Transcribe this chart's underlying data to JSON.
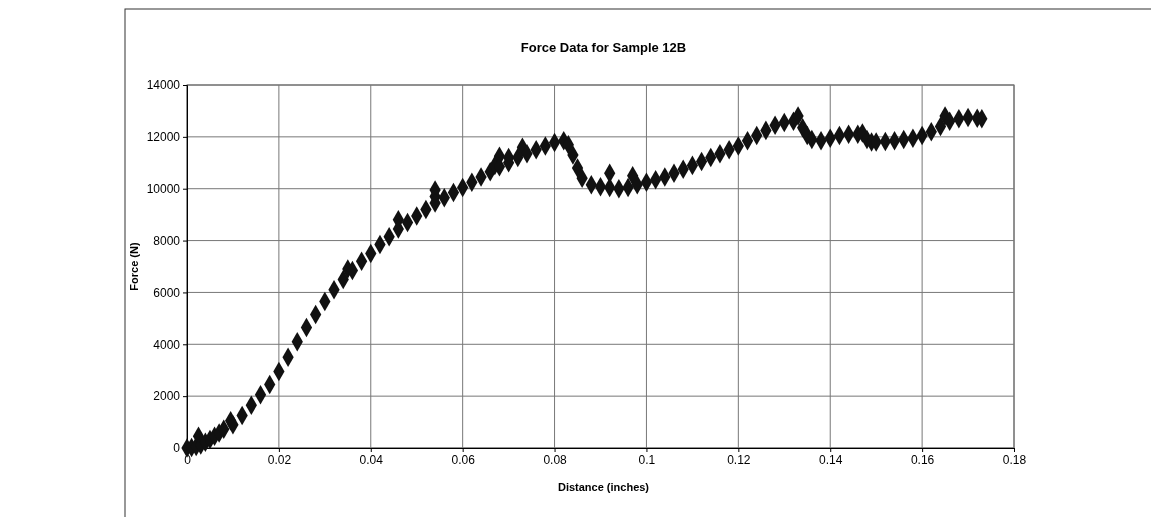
{
  "chart_data": {
    "type": "scatter",
    "title": "Force Data for Sample 12B",
    "xlabel": "Distance (inches)",
    "ylabel": "Force (N)",
    "xlim": [
      0,
      0.18
    ],
    "xticks": [
      0,
      0.02,
      0.04,
      0.06,
      0.08,
      0.1,
      0.12,
      0.14,
      0.16,
      0.18
    ],
    "ylim": [
      0,
      14000
    ],
    "yticks": [
      0,
      2000,
      4000,
      6000,
      8000,
      10000,
      12000,
      14000
    ],
    "grid": true,
    "marker": "diamond",
    "series": [
      {
        "color": "#111111",
        "x": [
          0,
          0.001,
          0.002,
          0.0025,
          0.003,
          0.004,
          0.005,
          0.006,
          0.007,
          0.008,
          0.0095,
          0.01,
          0.012,
          0.014,
          0.016,
          0.018,
          0.02,
          0.022,
          0.024,
          0.026,
          0.028,
          0.03,
          0.032,
          0.034,
          0.035,
          0.036,
          0.038,
          0.04,
          0.042,
          0.044,
          0.046,
          0.046,
          0.048,
          0.05,
          0.052,
          0.054,
          0.054,
          0.054,
          0.056,
          0.058,
          0.06,
          0.062,
          0.064,
          0.066,
          0.067,
          0.068,
          0.068,
          0.07,
          0.07,
          0.072,
          0.073,
          0.074,
          0.076,
          0.078,
          0.08,
          0.082,
          0.083,
          0.084,
          0.085,
          0.086,
          0.088,
          0.09,
          0.092,
          0.092,
          0.094,
          0.096,
          0.097,
          0.098,
          0.1,
          0.102,
          0.104,
          0.106,
          0.108,
          0.11,
          0.112,
          0.114,
          0.116,
          0.118,
          0.12,
          0.122,
          0.124,
          0.126,
          0.128,
          0.13,
          0.132,
          0.133,
          0.134,
          0.135,
          0.136,
          0.138,
          0.14,
          0.142,
          0.144,
          0.146,
          0.147,
          0.148,
          0.149,
          0.15,
          0.152,
          0.154,
          0.156,
          0.158,
          0.16,
          0.162,
          0.164,
          0.165,
          0.166,
          0.168,
          0.17,
          0.172,
          0.173
        ],
        "values": [
          0,
          20,
          60,
          450,
          120,
          220,
          330,
          450,
          580,
          720,
          1050,
          900,
          1250,
          1650,
          2050,
          2450,
          2950,
          3500,
          4100,
          4650,
          5150,
          5650,
          6100,
          6500,
          6900,
          6850,
          7200,
          7500,
          7850,
          8150,
          8800,
          8450,
          8700,
          8950,
          9200,
          9950,
          9700,
          9450,
          9650,
          9850,
          10050,
          10250,
          10450,
          10650,
          10900,
          11250,
          10850,
          11200,
          11000,
          11200,
          11600,
          11350,
          11500,
          11650,
          11780,
          11850,
          11700,
          11300,
          10800,
          10400,
          10150,
          10080,
          10600,
          10050,
          10000,
          10050,
          10500,
          10150,
          10250,
          10350,
          10450,
          10600,
          10750,
          10900,
          11050,
          11200,
          11350,
          11500,
          11650,
          11850,
          12050,
          12250,
          12450,
          12550,
          12600,
          12800,
          12350,
          12050,
          11900,
          11850,
          11950,
          12050,
          12100,
          12100,
          12150,
          11900,
          11800,
          11800,
          11820,
          11850,
          11900,
          11950,
          12050,
          12200,
          12400,
          12800,
          12600,
          12700,
          12750,
          12720,
          12700
        ]
      }
    ]
  }
}
